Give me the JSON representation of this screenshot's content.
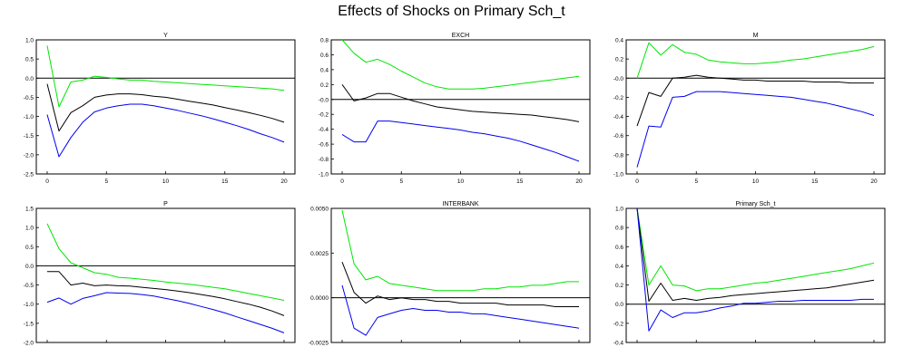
{
  "title": "Effects of Shocks on Primary Sch_t",
  "colors": {
    "upper": "#00e600",
    "point": "#000000",
    "lower": "#0000ee",
    "zero": "#000000"
  },
  "chart_data": [
    {
      "type": "line",
      "title": "Y",
      "xlim": [
        0,
        20
      ],
      "xticks": [
        0,
        5,
        10,
        15,
        20
      ],
      "xtick_labels": [
        "0",
        "5",
        "10",
        "15",
        "20"
      ],
      "ylim": [
        -2.5,
        1.0
      ],
      "yticks": [
        1.0,
        0.5,
        0.0,
        -0.5,
        -1.0,
        -1.5,
        -2.0,
        -2.5
      ],
      "ytick_labels": [
        "1.0",
        "0.5",
        "0.0",
        "-0.5",
        "-1.0",
        "-1.5",
        "-2.0",
        "-2.5"
      ],
      "x": [
        0,
        1,
        2,
        3,
        4,
        5,
        6,
        7,
        8,
        9,
        10,
        11,
        12,
        13,
        14,
        15,
        16,
        17,
        18,
        19,
        20
      ],
      "series": [
        {
          "key": "upper",
          "values": [
            0.85,
            -0.75,
            -0.1,
            -0.05,
            0.05,
            0.02,
            -0.02,
            -0.05,
            -0.05,
            -0.08,
            -0.1,
            -0.12,
            -0.14,
            -0.16,
            -0.18,
            -0.2,
            -0.22,
            -0.24,
            -0.26,
            -0.28,
            -0.32
          ]
        },
        {
          "key": "point",
          "values": [
            -0.15,
            -1.38,
            -0.9,
            -0.72,
            -0.5,
            -0.44,
            -0.41,
            -0.41,
            -0.43,
            -0.47,
            -0.5,
            -0.55,
            -0.6,
            -0.65,
            -0.7,
            -0.77,
            -0.83,
            -0.9,
            -0.97,
            -1.05,
            -1.15
          ]
        },
        {
          "key": "lower",
          "values": [
            -0.95,
            -2.05,
            -1.55,
            -1.15,
            -0.88,
            -0.78,
            -0.72,
            -0.68,
            -0.68,
            -0.72,
            -0.78,
            -0.84,
            -0.91,
            -0.98,
            -1.06,
            -1.15,
            -1.24,
            -1.34,
            -1.45,
            -1.55,
            -1.67
          ]
        }
      ]
    },
    {
      "type": "line",
      "title": "EXCH",
      "xlim": [
        0,
        20
      ],
      "xticks": [
        0,
        5,
        10,
        15,
        20
      ],
      "xtick_labels": [
        "0",
        "5",
        "10",
        "15",
        "20"
      ],
      "ylim": [
        -1.0,
        0.8
      ],
      "yticks": [
        0.8,
        0.6,
        0.4,
        0.2,
        0.0,
        -0.2,
        -0.4,
        -0.6,
        -0.8,
        -1.0
      ],
      "ytick_labels": [
        "0.8",
        "0.6",
        "0.4",
        "0.2",
        "-0.0",
        "-0.2",
        "-0.4",
        "-0.6",
        "-0.8",
        "-1.0"
      ],
      "x": [
        0,
        1,
        2,
        3,
        4,
        5,
        6,
        7,
        8,
        9,
        10,
        11,
        12,
        13,
        14,
        15,
        16,
        17,
        18,
        19,
        20
      ],
      "series": [
        {
          "key": "upper",
          "values": [
            0.8,
            0.62,
            0.5,
            0.54,
            0.47,
            0.38,
            0.3,
            0.22,
            0.17,
            0.14,
            0.14,
            0.14,
            0.15,
            0.17,
            0.19,
            0.21,
            0.23,
            0.25,
            0.27,
            0.29,
            0.31
          ]
        },
        {
          "key": "point",
          "values": [
            0.2,
            -0.02,
            0.02,
            0.08,
            0.08,
            0.03,
            -0.02,
            -0.06,
            -0.1,
            -0.12,
            -0.14,
            -0.16,
            -0.17,
            -0.18,
            -0.19,
            -0.2,
            -0.21,
            -0.23,
            -0.25,
            -0.27,
            -0.3
          ]
        },
        {
          "key": "lower",
          "values": [
            -0.47,
            -0.57,
            -0.57,
            -0.29,
            -0.29,
            -0.31,
            -0.33,
            -0.35,
            -0.37,
            -0.39,
            -0.41,
            -0.44,
            -0.46,
            -0.49,
            -0.52,
            -0.56,
            -0.61,
            -0.66,
            -0.71,
            -0.77,
            -0.83
          ]
        }
      ]
    },
    {
      "type": "line",
      "title": "M",
      "xlim": [
        0,
        20
      ],
      "xticks": [
        0,
        5,
        10,
        15,
        20
      ],
      "xtick_labels": [
        "0",
        "5",
        "10",
        "15",
        "20"
      ],
      "ylim": [
        -1.0,
        0.4
      ],
      "yticks": [
        0.4,
        0.2,
        0.0,
        -0.2,
        -0.4,
        -0.6,
        -0.8,
        -1.0
      ],
      "ytick_labels": [
        "0.4",
        "0.2",
        "-0.0",
        "-0.2",
        "-0.4",
        "-0.6",
        "-0.8",
        "-1.0"
      ],
      "x": [
        0,
        1,
        2,
        3,
        4,
        5,
        6,
        7,
        8,
        9,
        10,
        11,
        12,
        13,
        14,
        15,
        16,
        17,
        18,
        19,
        20
      ],
      "series": [
        {
          "key": "upper",
          "values": [
            0.0,
            0.37,
            0.24,
            0.35,
            0.27,
            0.25,
            0.19,
            0.17,
            0.16,
            0.15,
            0.15,
            0.16,
            0.17,
            0.19,
            0.2,
            0.22,
            0.24,
            0.26,
            0.28,
            0.3,
            0.33
          ]
        },
        {
          "key": "point",
          "values": [
            -0.5,
            -0.15,
            -0.19,
            0.0,
            0.01,
            0.03,
            0.01,
            0.0,
            -0.01,
            -0.02,
            -0.02,
            -0.03,
            -0.03,
            -0.03,
            -0.03,
            -0.04,
            -0.04,
            -0.04,
            -0.05,
            -0.05,
            -0.05
          ]
        },
        {
          "key": "lower",
          "values": [
            -0.93,
            -0.5,
            -0.51,
            -0.2,
            -0.19,
            -0.14,
            -0.14,
            -0.14,
            -0.15,
            -0.16,
            -0.17,
            -0.18,
            -0.19,
            -0.2,
            -0.22,
            -0.24,
            -0.26,
            -0.29,
            -0.32,
            -0.35,
            -0.39
          ]
        }
      ]
    },
    {
      "type": "line",
      "title": "P",
      "xlim": [
        0,
        20
      ],
      "xticks": [
        0,
        5,
        10,
        15,
        20
      ],
      "xtick_labels": [
        "0",
        "5",
        "10",
        "15",
        "20"
      ],
      "ylim": [
        -2.0,
        1.5
      ],
      "yticks": [
        1.5,
        1.0,
        0.5,
        0.0,
        -0.5,
        -1.0,
        -1.5,
        -2.0
      ],
      "ytick_labels": [
        "1.5",
        "1.0",
        "0.5",
        "0.0",
        "-0.5",
        "-1.0",
        "-1.5",
        "-2.0"
      ],
      "x": [
        0,
        1,
        2,
        3,
        4,
        5,
        6,
        7,
        8,
        9,
        10,
        11,
        12,
        13,
        14,
        15,
        16,
        17,
        18,
        19,
        20
      ],
      "series": [
        {
          "key": "upper",
          "values": [
            1.1,
            0.45,
            0.08,
            -0.05,
            -0.18,
            -0.22,
            -0.3,
            -0.32,
            -0.35,
            -0.38,
            -0.42,
            -0.45,
            -0.48,
            -0.52,
            -0.56,
            -0.6,
            -0.66,
            -0.72,
            -0.78,
            -0.84,
            -0.9
          ]
        },
        {
          "key": "point",
          "values": [
            -0.15,
            -0.15,
            -0.5,
            -0.45,
            -0.52,
            -0.5,
            -0.52,
            -0.53,
            -0.56,
            -0.59,
            -0.62,
            -0.66,
            -0.7,
            -0.75,
            -0.8,
            -0.86,
            -0.93,
            -1.0,
            -1.08,
            -1.18,
            -1.3
          ]
        },
        {
          "key": "lower",
          "values": [
            -0.95,
            -0.84,
            -1.0,
            -0.85,
            -0.78,
            -0.7,
            -0.71,
            -0.72,
            -0.75,
            -0.79,
            -0.85,
            -0.91,
            -0.98,
            -1.06,
            -1.14,
            -1.23,
            -1.33,
            -1.43,
            -1.53,
            -1.63,
            -1.75
          ]
        }
      ]
    },
    {
      "type": "line",
      "title": "INTERBANK",
      "xlim": [
        0,
        20
      ],
      "xticks": [
        0,
        5,
        10,
        15,
        20
      ],
      "xtick_labels": [
        "0",
        "5",
        "10",
        "15",
        "20"
      ],
      "ylim": [
        -0.0025,
        0.005
      ],
      "yticks": [
        0.005,
        0.0025,
        0.0,
        -0.0025
      ],
      "ytick_labels": [
        "0.0050",
        "0.0025",
        "0.0000",
        "-0.0025"
      ],
      "x": [
        0,
        1,
        2,
        3,
        4,
        5,
        6,
        7,
        8,
        9,
        10,
        11,
        12,
        13,
        14,
        15,
        16,
        17,
        18,
        19,
        20
      ],
      "series": [
        {
          "key": "upper",
          "values": [
            0.0049,
            0.0019,
            0.001,
            0.0012,
            0.0008,
            0.0007,
            0.0006,
            0.0005,
            0.0004,
            0.0004,
            0.0004,
            0.0004,
            0.0005,
            0.0005,
            0.0006,
            0.0006,
            0.0007,
            0.0007,
            0.0008,
            0.0009,
            0.0009
          ]
        },
        {
          "key": "point",
          "values": [
            0.002,
            0.0003,
            -0.0003,
            0.0001,
            -0.0001,
            0.0,
            -0.0001,
            -0.0001,
            -0.0002,
            -0.0002,
            -0.0003,
            -0.0003,
            -0.0003,
            -0.0003,
            -0.0004,
            -0.0004,
            -0.0004,
            -0.0004,
            -0.0005,
            -0.0005,
            -0.0005
          ]
        },
        {
          "key": "lower",
          "values": [
            0.0007,
            -0.0017,
            -0.0021,
            -0.0011,
            -0.0009,
            -0.0007,
            -0.0006,
            -0.0007,
            -0.0007,
            -0.0008,
            -0.0008,
            -0.0009,
            -0.0009,
            -0.001,
            -0.0011,
            -0.0012,
            -0.0013,
            -0.0014,
            -0.0015,
            -0.0016,
            -0.0017
          ]
        }
      ]
    },
    {
      "type": "line",
      "title": "Primary Sch_t",
      "xlim": [
        0,
        20
      ],
      "xticks": [
        0,
        5,
        10,
        15,
        20
      ],
      "xtick_labels": [
        "0",
        "5",
        "10",
        "15",
        "20"
      ],
      "ylim": [
        -0.4,
        1.0
      ],
      "yticks": [
        1.0,
        0.8,
        0.6,
        0.4,
        0.2,
        0.0,
        -0.2,
        -0.4
      ],
      "ytick_labels": [
        "1.0",
        "0.8",
        "0.6",
        "0.4",
        "0.2",
        "0.0",
        "-0.2",
        "-0.4"
      ],
      "x": [
        0,
        1,
        2,
        3,
        4,
        5,
        6,
        7,
        8,
        9,
        10,
        11,
        12,
        13,
        14,
        15,
        16,
        17,
        18,
        19,
        20
      ],
      "series": [
        {
          "key": "upper",
          "values": [
            1.0,
            0.2,
            0.4,
            0.2,
            0.19,
            0.14,
            0.16,
            0.16,
            0.18,
            0.2,
            0.22,
            0.23,
            0.25,
            0.27,
            0.29,
            0.31,
            0.33,
            0.35,
            0.37,
            0.4,
            0.43
          ]
        },
        {
          "key": "point",
          "values": [
            1.0,
            0.03,
            0.22,
            0.04,
            0.06,
            0.04,
            0.06,
            0.07,
            0.09,
            0.1,
            0.11,
            0.12,
            0.13,
            0.14,
            0.15,
            0.16,
            0.17,
            0.19,
            0.21,
            0.23,
            0.25
          ]
        },
        {
          "key": "lower",
          "values": [
            1.0,
            -0.28,
            -0.06,
            -0.14,
            -0.09,
            -0.09,
            -0.07,
            -0.04,
            -0.02,
            0.01,
            0.01,
            0.02,
            0.03,
            0.03,
            0.04,
            0.04,
            0.04,
            0.04,
            0.04,
            0.05,
            0.05
          ]
        }
      ]
    }
  ]
}
